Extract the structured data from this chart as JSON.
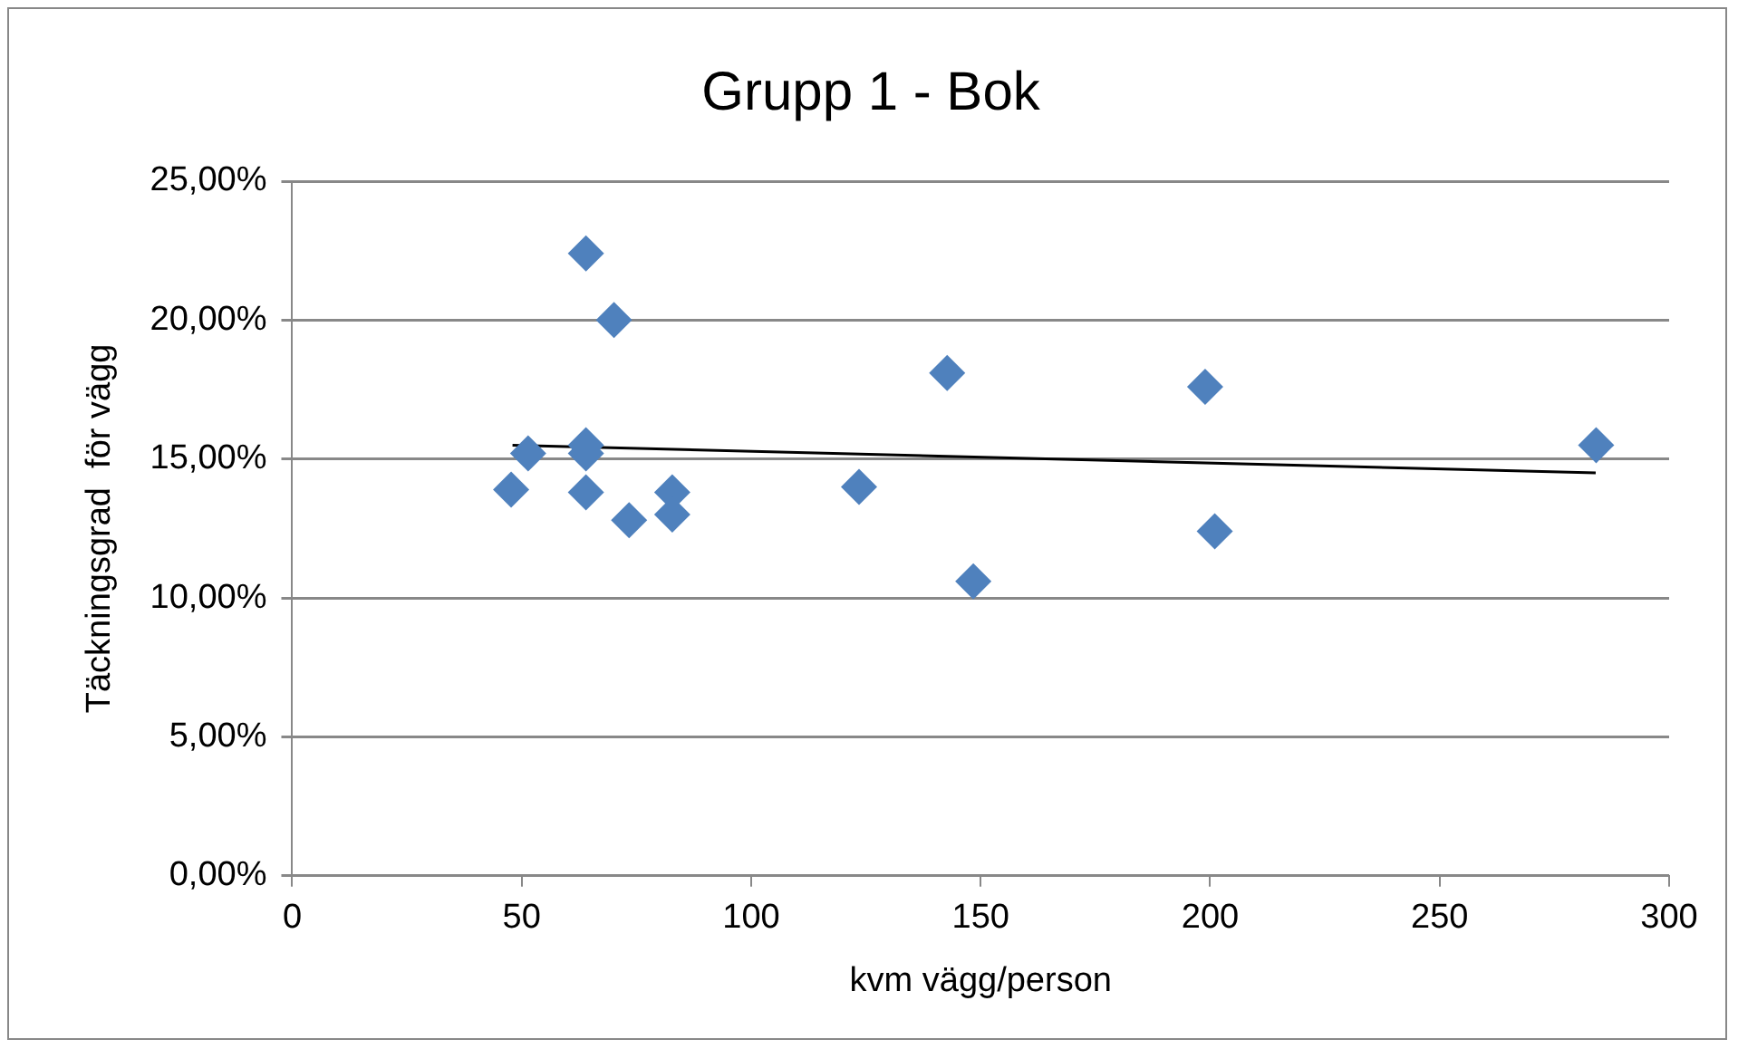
{
  "chart_data": {
    "type": "scatter",
    "title": "Grupp 1 - Bok",
    "xlabel": "kvm vägg/person",
    "ylabel": "Täckningsgrad  för vägg",
    "xlim": [
      0,
      300
    ],
    "xticks": [
      0,
      50,
      100,
      150,
      200,
      250,
      300
    ],
    "ylim": [
      0,
      25
    ],
    "yticks": [
      {
        "value": 0,
        "label": "0,00%"
      },
      {
        "value": 5,
        "label": "5,00%"
      },
      {
        "value": 10,
        "label": "10,00%"
      },
      {
        "value": 15,
        "label": "15,00%"
      },
      {
        "value": 20,
        "label": "20,00%"
      },
      {
        "value": 25,
        "label": "25,00%"
      }
    ],
    "grid": "y",
    "legend": false,
    "marker": "diamond",
    "series": [
      {
        "color": "#4f81bd",
        "x": [
          47.7,
          51.4,
          64,
          64,
          64,
          64,
          70.1,
          73.4,
          82.8,
          82.8,
          123.5,
          142.7,
          148.4,
          198.9,
          201,
          284.1
        ],
        "values": [
          13.9,
          15.2,
          22.4,
          15.5,
          15.2,
          13.8,
          20.0,
          12.8,
          13.8,
          13.0,
          14.0,
          18.1,
          10.6,
          17.6,
          12.4,
          15.5
        ]
      },
      {
        "type": "line",
        "color": "#000000",
        "marker": "none",
        "x": [
          48,
          284
        ],
        "values": [
          15.5,
          14.5
        ]
      }
    ]
  }
}
